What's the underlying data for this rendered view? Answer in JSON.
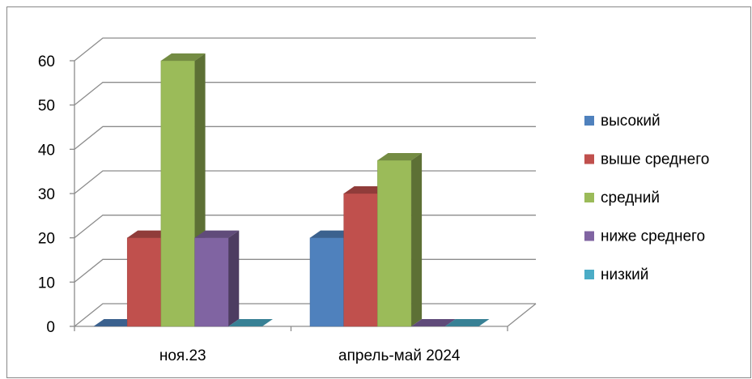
{
  "chart_data": {
    "type": "bar",
    "title": "",
    "xlabel": "",
    "ylabel": "",
    "ylim": [
      0,
      60
    ],
    "yticks": [
      0,
      10,
      20,
      30,
      40,
      50,
      60
    ],
    "categories": [
      "ноя.23",
      "апрель-май 2024"
    ],
    "series": [
      {
        "name": "высокий",
        "values": [
          0,
          20
        ],
        "color": "#4F81BD"
      },
      {
        "name": "выше среднего",
        "values": [
          20,
          30
        ],
        "color": "#C0504D"
      },
      {
        "name": "средний",
        "values": [
          60,
          37.5
        ],
        "color": "#9BBB59"
      },
      {
        "name": "ниже среднего",
        "values": [
          20,
          0
        ],
        "color": "#8064A2"
      },
      {
        "name": "низкий",
        "values": [
          0,
          0
        ],
        "color": "#4BACC6"
      }
    ],
    "grid": true,
    "legend": "right",
    "style": "3d-clustered-column"
  }
}
